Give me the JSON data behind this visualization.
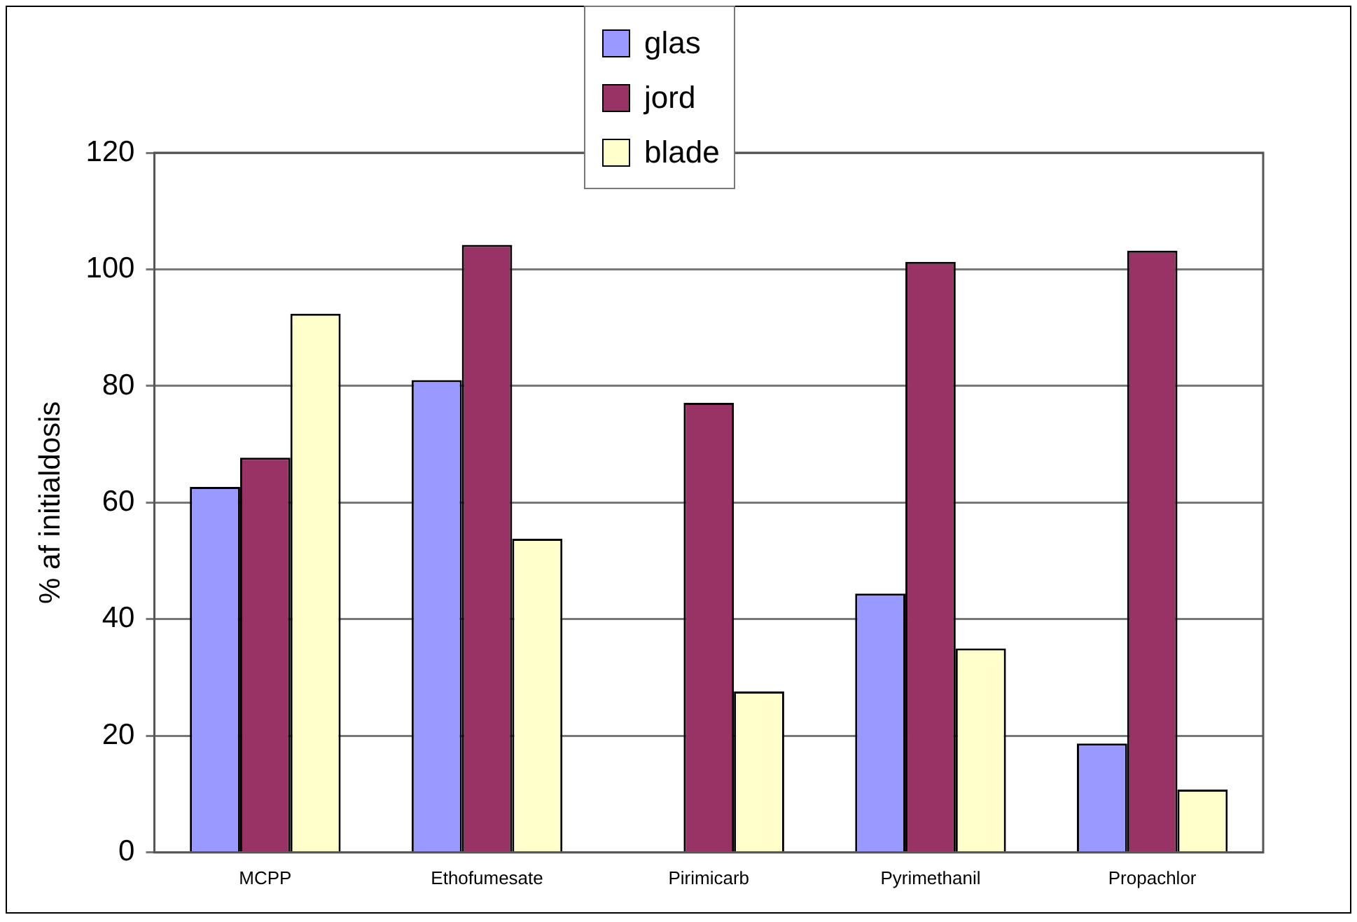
{
  "chart_data": {
    "type": "bar",
    "ylabel": "% af initialdosis",
    "categories": [
      "MCPP",
      "Ethofumesate",
      "Pirimicarb",
      "Pyrimethanil",
      "Propachlor"
    ],
    "series": [
      {
        "name": "glas",
        "color": "#9999ff",
        "values": [
          62.7,
          81,
          null,
          44.4,
          18.7
        ]
      },
      {
        "name": "jord",
        "color": "#993366",
        "values": [
          67.7,
          104.2,
          77.1,
          101.3,
          103.2
        ]
      },
      {
        "name": "blade",
        "color": "#ffffcc",
        "values": [
          92.4,
          53.8,
          27.6,
          35,
          10.8
        ]
      }
    ],
    "ylim": [
      0,
      120
    ],
    "yticks": [
      0,
      20,
      40,
      60,
      80,
      100,
      120
    ],
    "grid": "y",
    "legend": "top"
  }
}
